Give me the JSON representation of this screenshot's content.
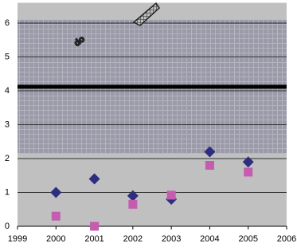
{
  "chart_data": {
    "type": "scatter",
    "annotation": "do",
    "x": [
      2000,
      2001,
      2002,
      2003,
      2004,
      2005
    ],
    "series": [
      {
        "color": "#2e2e80",
        "marker": "diamond",
        "values": [
          1.0,
          1.4,
          0.9,
          0.8,
          2.2,
          1.9
        ]
      },
      {
        "color": "#c45cb0",
        "marker": "square",
        "values": [
          0.3,
          0.0,
          0.65,
          0.92,
          1.8,
          1.6
        ]
      }
    ],
    "reference_line": 4.12,
    "shaded_band": [
      2.15,
      6.1
    ],
    "xlim": [
      1999,
      2006
    ],
    "xticks": [
      1999,
      2000,
      2001,
      2002,
      2003,
      2004,
      2005,
      2006
    ],
    "ylim": [
      0,
      6.6
    ],
    "yticks": [
      0,
      1,
      2,
      3,
      4,
      5,
      6
    ],
    "grid": true
  }
}
